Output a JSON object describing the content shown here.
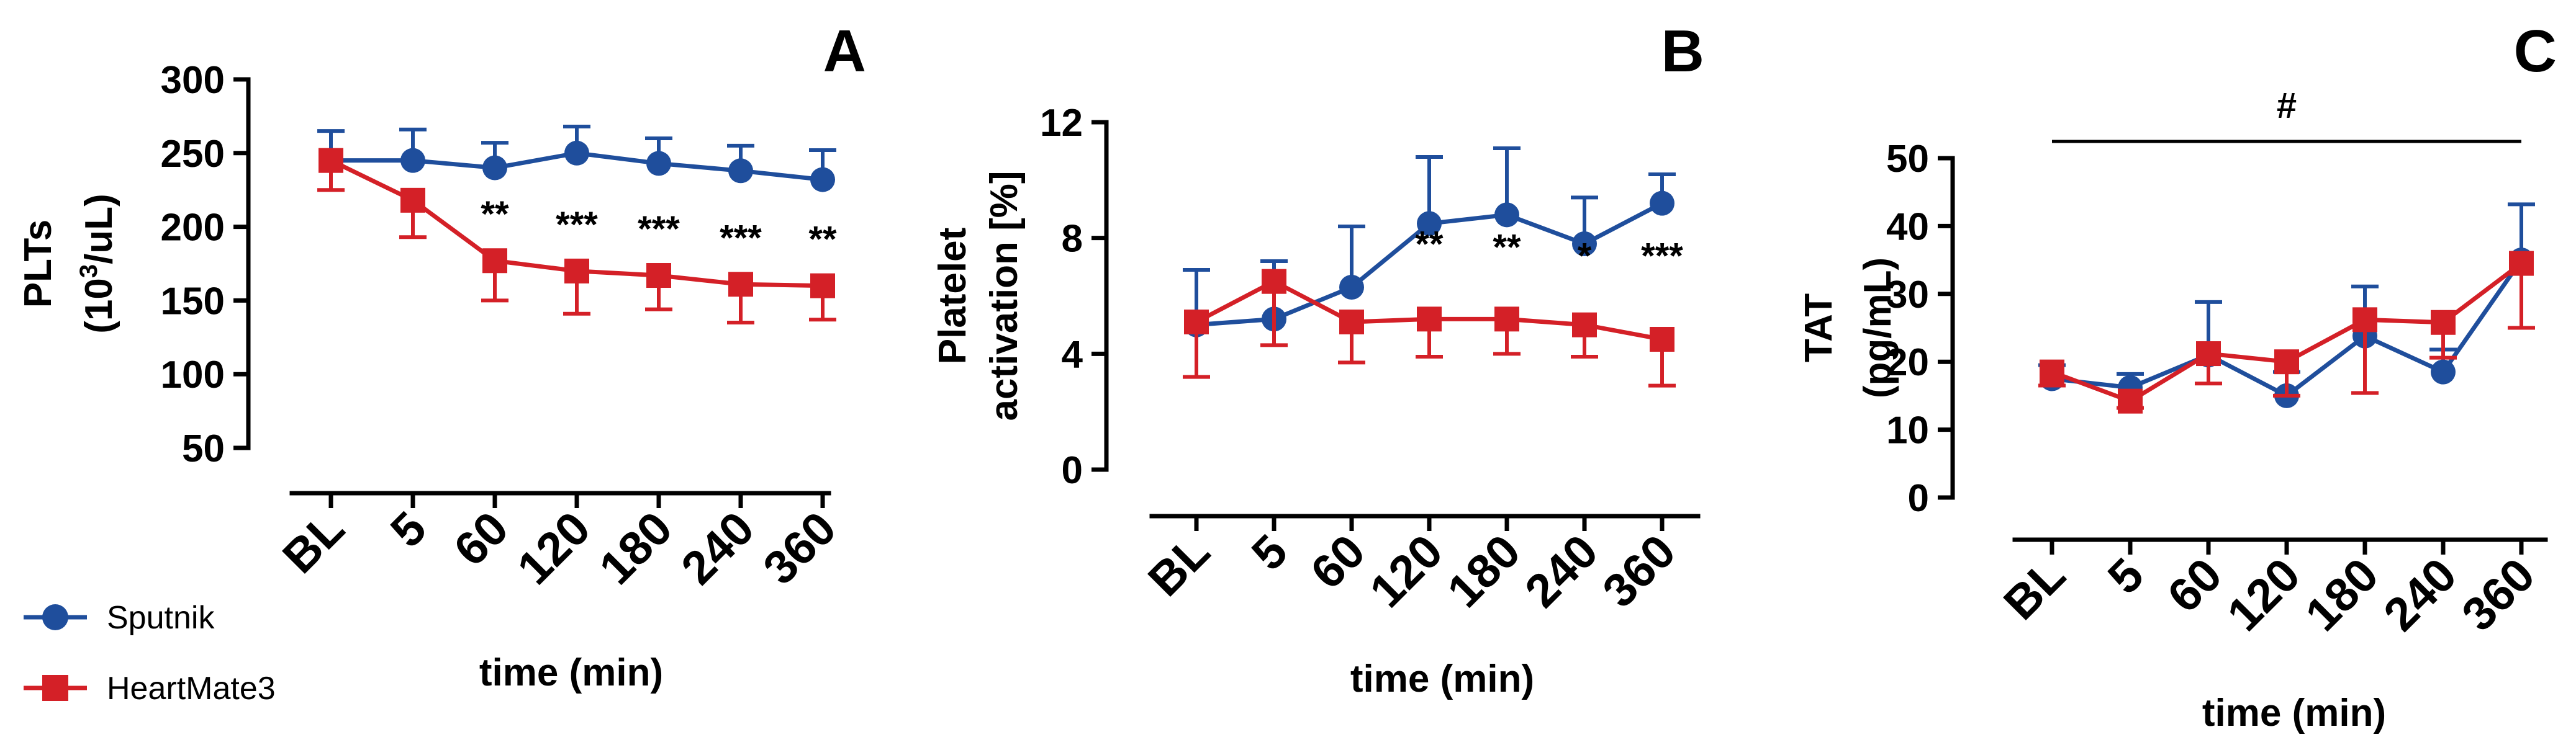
{
  "series_colors": {
    "Sputnik": "#1f4e9c",
    "HeartMate3": "#d42027"
  },
  "legend": [
    {
      "label": "Sputnik",
      "marker": "circle",
      "color": "#1f4e9c"
    },
    {
      "label": "HeartMate3",
      "marker": "square",
      "color": "#d42027"
    }
  ],
  "chart_data": [
    {
      "type": "line",
      "panel": "A",
      "categories": [
        "BL",
        "5",
        "60",
        "120",
        "180",
        "240",
        "360"
      ],
      "xlabel": "time (min)",
      "ylabel_lines": [
        "PLTs",
        "(10",
        "3",
        "/uL)"
      ],
      "ylim": [
        50,
        300
      ],
      "yticks": [
        50,
        100,
        150,
        200,
        250,
        300
      ],
      "significance": [
        "",
        "",
        "**",
        "***",
        "***",
        "***",
        "**"
      ],
      "series": [
        {
          "name": "Sputnik",
          "values": [
            245,
            245,
            240,
            250,
            243,
            238,
            232
          ],
          "errors": [
            20,
            21,
            17,
            18,
            17,
            17,
            20
          ]
        },
        {
          "name": "HeartMate3",
          "values": [
            245,
            218,
            177,
            170,
            167,
            161,
            160
          ],
          "errors": [
            20,
            25,
            27,
            29,
            23,
            26,
            23
          ]
        }
      ]
    },
    {
      "type": "line",
      "panel": "B",
      "categories": [
        "BL",
        "5",
        "60",
        "120",
        "180",
        "240",
        "360"
      ],
      "xlabel": "time (min)",
      "ylabel_lines": [
        "Platelet",
        "activation [%]"
      ],
      "ylim": [
        0,
        12
      ],
      "yticks": [
        0,
        4,
        8,
        12
      ],
      "significance": [
        "",
        "",
        "",
        "**",
        "**",
        "*",
        "***"
      ],
      "series": [
        {
          "name": "Sputnik",
          "values": [
            5.0,
            5.2,
            6.3,
            8.5,
            8.8,
            7.8,
            9.2
          ],
          "errors": [
            1.9,
            2.0,
            2.1,
            2.3,
            2.3,
            1.6,
            1.0
          ]
        },
        {
          "name": "HeartMate3",
          "values": [
            5.1,
            6.5,
            5.1,
            5.2,
            5.2,
            5.0,
            4.5
          ],
          "errors": [
            1.9,
            2.2,
            1.4,
            1.3,
            1.2,
            1.1,
            1.6
          ]
        }
      ]
    },
    {
      "type": "line",
      "panel": "C",
      "categories": [
        "BL",
        "5",
        "60",
        "120",
        "180",
        "240",
        "360"
      ],
      "xlabel": "time (min)",
      "ylabel_lines": [
        "TAT",
        "(pg/mL)"
      ],
      "ylim": [
        0,
        50
      ],
      "yticks": [
        0,
        10,
        20,
        30,
        40,
        50
      ],
      "bracket_label": "#",
      "series": [
        {
          "name": "Sputnik",
          "values": [
            17.5,
            16.2,
            21,
            15,
            23.8,
            18.5,
            35
          ],
          "errors": [
            2.0,
            2.0,
            7.8,
            3.5,
            7.3,
            3.3,
            8.2
          ]
        },
        {
          "name": "HeartMate3",
          "values": [
            18.5,
            14.2,
            21.2,
            20,
            26.2,
            25.8,
            34.5
          ],
          "errors": [
            2.0,
            1.0,
            4.4,
            5.0,
            10.8,
            5.2,
            9.5
          ]
        }
      ]
    }
  ]
}
